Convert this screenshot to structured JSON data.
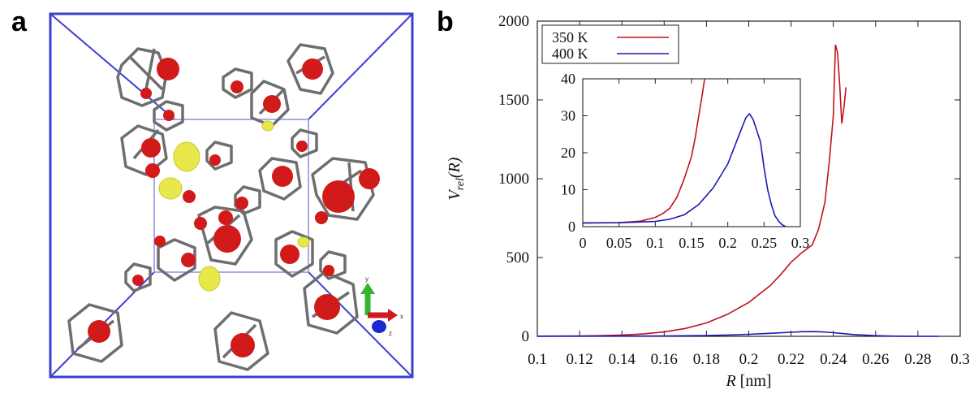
{
  "panel_a": {
    "letter": "a",
    "axis_labels": {
      "x": "x",
      "y": "y",
      "z": "z"
    },
    "colors": {
      "box": "#3b3fcf",
      "atom": "#d11a1a",
      "solute": "#e8e84a",
      "bond": "#6e6e6e"
    }
  },
  "panel_b": {
    "letter": "b"
  },
  "chart_data": {
    "type": "line",
    "title": "",
    "xlabel": "R [nm]",
    "ylabel": "V_rel(R)",
    "xlim": [
      0.1,
      0.3
    ],
    "ylim": [
      0,
      2000
    ],
    "x_ticks": [
      "0.1",
      "0.12",
      "0.14",
      "0.16",
      "0.18",
      "0.2",
      "0.22",
      "0.24",
      "0.26",
      "0.28",
      "0.3"
    ],
    "y_ticks": [
      "0",
      "500",
      "1000",
      "1500",
      "2000"
    ],
    "legend_position": "top-left",
    "series": [
      {
        "name": "350 K",
        "color": "#c0141c",
        "x": [
          0.1,
          0.12,
          0.13,
          0.14,
          0.15,
          0.16,
          0.17,
          0.18,
          0.19,
          0.2,
          0.21,
          0.215,
          0.22,
          0.225,
          0.23,
          0.233,
          0.236,
          0.238,
          0.24,
          0.241,
          0.242,
          0.243,
          0.244,
          0.245,
          0.246
        ],
        "y": [
          1,
          2,
          4,
          8,
          15,
          28,
          50,
          85,
          140,
          215,
          320,
          390,
          470,
          530,
          580,
          680,
          850,
          1100,
          1400,
          1850,
          1800,
          1600,
          1350,
          1450,
          1580
        ]
      },
      {
        "name": "400 K",
        "color": "#1a1ab4",
        "x": [
          0.1,
          0.12,
          0.14,
          0.16,
          0.18,
          0.19,
          0.2,
          0.21,
          0.22,
          0.225,
          0.23,
          0.235,
          0.24,
          0.245,
          0.25,
          0.255,
          0.26,
          0.265,
          0.27,
          0.275,
          0.28,
          0.29
        ],
        "y": [
          1,
          1.2,
          1.5,
          2.5,
          5,
          8,
          13,
          19,
          26,
          29.5,
          30,
          28,
          23,
          17,
          11,
          7,
          4,
          2,
          1,
          0.5,
          0.2,
          0
        ]
      }
    ],
    "inset": {
      "xlim": [
        0,
        0.3
      ],
      "ylim": [
        0,
        40
      ],
      "x_ticks": [
        "0",
        "0.05",
        "0.1",
        "0.15",
        "0.2",
        "0.25",
        "0.3"
      ],
      "y_ticks": [
        "0",
        "10",
        "20",
        "30",
        "40"
      ],
      "series": [
        {
          "name": "350 K",
          "color": "#c0141c",
          "x": [
            0,
            0.05,
            0.08,
            0.1,
            0.11,
            0.12,
            0.13,
            0.14,
            0.15,
            0.155,
            0.16,
            0.165,
            0.168
          ],
          "y": [
            1,
            1.1,
            1.5,
            2.5,
            3.5,
            5,
            8,
            13,
            19,
            24,
            30,
            36,
            40
          ]
        },
        {
          "name": "400 K",
          "color": "#1a1ab4",
          "x": [
            0,
            0.05,
            0.1,
            0.12,
            0.14,
            0.16,
            0.18,
            0.2,
            0.21,
            0.22,
            0.225,
            0.23,
            0.235,
            0.24,
            0.245,
            0.25,
            0.255,
            0.26,
            0.265,
            0.27,
            0.275,
            0.28
          ],
          "y": [
            1,
            1.05,
            1.4,
            2,
            3.2,
            6,
            10.5,
            17,
            22,
            27,
            29.5,
            30.5,
            29,
            26,
            23,
            16,
            10,
            6,
            3,
            1.5,
            0.5,
            0
          ]
        }
      ]
    }
  }
}
